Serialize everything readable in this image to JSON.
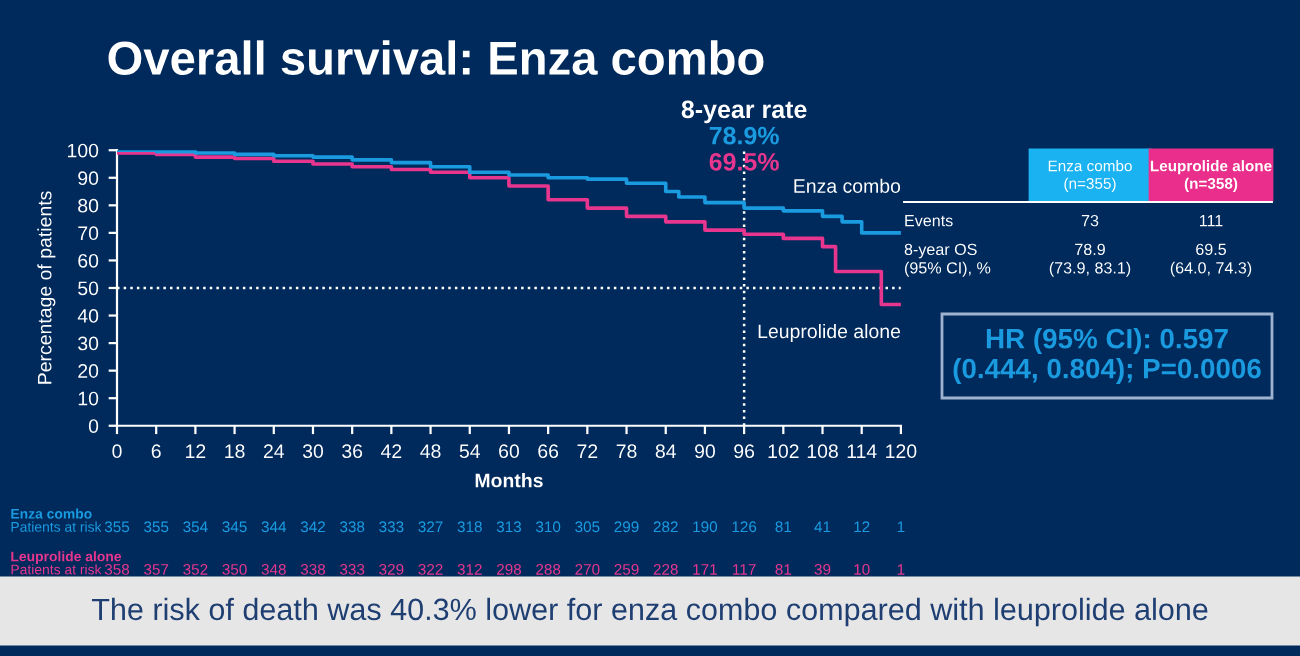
{
  "chart_data": {
    "type": "step",
    "title": "Overall survival: Enza combo",
    "xlabel": "Months",
    "ylabel": "Percentage of patients",
    "xlim": [
      0,
      120
    ],
    "xticks": [
      0,
      6,
      12,
      18,
      24,
      30,
      36,
      42,
      48,
      54,
      60,
      66,
      72,
      78,
      84,
      90,
      96,
      102,
      108,
      114,
      120
    ],
    "ylim": [
      0,
      100
    ],
    "yticks": [
      0,
      10,
      20,
      30,
      40,
      50,
      60,
      70,
      80,
      90,
      100
    ],
    "grid": false,
    "legend": false,
    "marker": "none",
    "line_style": "solid",
    "series": [
      {
        "name": "Enza combo",
        "color": "#1a9be0",
        "x": [
          0,
          6,
          12,
          18,
          24,
          30,
          36,
          42,
          48,
          54,
          60,
          66,
          72,
          78,
          84,
          86,
          90,
          96,
          102,
          108,
          111,
          114,
          120
        ],
        "values": [
          100,
          99.5,
          99,
          98.5,
          98,
          97.5,
          96.5,
          95.5,
          94,
          92,
          91,
          90,
          89.5,
          88,
          85,
          83,
          81,
          79,
          78,
          76,
          74,
          70,
          70
        ]
      },
      {
        "name": "Leuprolide alone",
        "color": "#e8368f",
        "x": [
          0,
          6,
          12,
          18,
          24,
          30,
          36,
          42,
          48,
          54,
          60,
          66,
          72,
          78,
          84,
          90,
          96,
          102,
          108,
          110,
          117,
          120
        ],
        "values": [
          99,
          98.5,
          97.5,
          97,
          96,
          95,
          94,
          93,
          92,
          90,
          87,
          82,
          79,
          76,
          74,
          71,
          69.5,
          68,
          65,
          56,
          44,
          44
        ]
      }
    ],
    "ref_lines": [
      {
        "axis": "y",
        "value": 50,
        "color": "#ffffff",
        "line_style": "dotted"
      },
      {
        "axis": "x",
        "value": 96,
        "color": "#ffffff",
        "line_style": "dotted"
      }
    ],
    "annotations": [
      "8-year rate",
      "78.9%",
      "69.5%",
      "Enza combo",
      "Patients at risk",
      "355",
      "355",
      "354",
      "345",
      "344",
      "342",
      "338",
      "333",
      "327",
      "318",
      "313",
      "310",
      "305",
      "299",
      "282",
      "190",
      "126",
      "81",
      "41",
      "12",
      "1",
      "Leuprolide alone",
      "Patients at risk",
      "358",
      "357",
      "352",
      "350",
      "348",
      "338",
      "333",
      "329",
      "322",
      "312",
      "298",
      "288",
      "270",
      "259",
      "228",
      "171",
      "117",
      "81",
      "39",
      "10",
      "1",
      "Enza combo\n(n=355)",
      "Leuprolide alone\n(n=358)",
      "Events",
      "73",
      "111",
      "8-year OS\n(95% CI), %",
      "78.9\n(73.9, 83.1)",
      "69.5\n(64.0, 74.3)",
      "HR (95% CI): 0.597\n(0.444, 0.804); P=0.0006",
      "The risk of death was 40.3% lower for enza combo compared with leuprolide alone"
    ]
  }
}
